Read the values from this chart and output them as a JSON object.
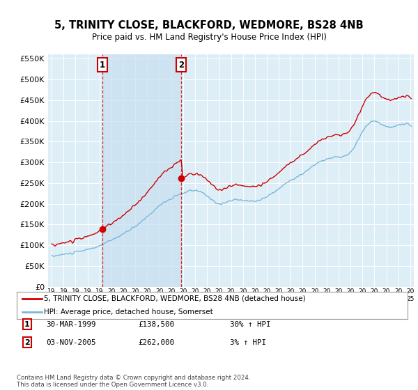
{
  "title": "5, TRINITY CLOSE, BLACKFORD, WEDMORE, BS28 4NB",
  "subtitle": "Price paid vs. HM Land Registry's House Price Index (HPI)",
  "hpi_line_color": "#7ab8d9",
  "property_line_color": "#cc0000",
  "shade_color": "#c8dff0",
  "dot_color": "#cc0000",
  "marker1": {
    "year": 1999.25,
    "value": 138500,
    "label": "1",
    "date": "30-MAR-1999",
    "price": "£138,500",
    "hpi_change": "30% ↑ HPI"
  },
  "marker2": {
    "year": 2005.84,
    "value": 262000,
    "label": "2",
    "date": "03-NOV-2005",
    "price": "£262,000",
    "hpi_change": "3% ↑ HPI"
  },
  "ylim": [
    0,
    560000
  ],
  "yticks": [
    0,
    50000,
    100000,
    150000,
    200000,
    250000,
    300000,
    350000,
    400000,
    450000,
    500000,
    550000
  ],
  "xlim_start": 1994.7,
  "xlim_end": 2025.3,
  "legend_property": "5, TRINITY CLOSE, BLACKFORD, WEDMORE, BS28 4NB (detached house)",
  "legend_hpi": "HPI: Average price, detached house, Somerset",
  "footnote": "Contains HM Land Registry data © Crown copyright and database right 2024.\nThis data is licensed under the Open Government Licence v3.0.",
  "background_color": "#ffffff",
  "plot_bg_color": "#ddeef7"
}
